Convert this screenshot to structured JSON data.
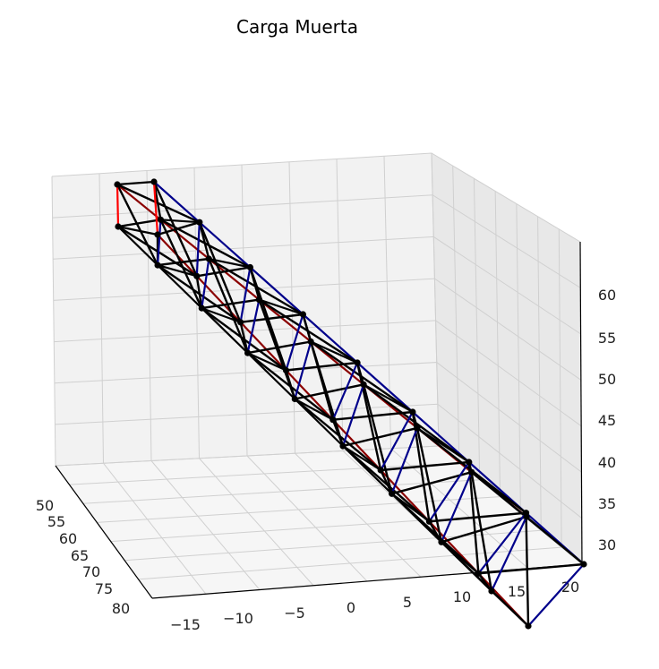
{
  "chart_data": {
    "type": "3d-wireframe",
    "title": "Carga Muerta",
    "xlabel": "",
    "ylabel": "",
    "zlabel": "",
    "grid": true,
    "x_ticks": [
      "−15",
      "−10",
      "−5",
      "0",
      "5",
      "10",
      "15",
      "20"
    ],
    "y_ticks": [
      "50",
      "55",
      "60",
      "65",
      "70",
      "75",
      "80"
    ],
    "z_ticks": [
      "30",
      "35",
      "40",
      "45",
      "50",
      "55",
      "60"
    ],
    "structure": {
      "description": "Bridge-like lattice truss (two parallel vertical planes with diagonal X bracing), nodes drawn as black dots",
      "member_colors": {
        "bracing": "#000000",
        "bottom_chord_near": "#00008b",
        "top_chord_near": "#8b0000",
        "end_posts": "#ff0000"
      },
      "node_color": "#000000"
    }
  }
}
